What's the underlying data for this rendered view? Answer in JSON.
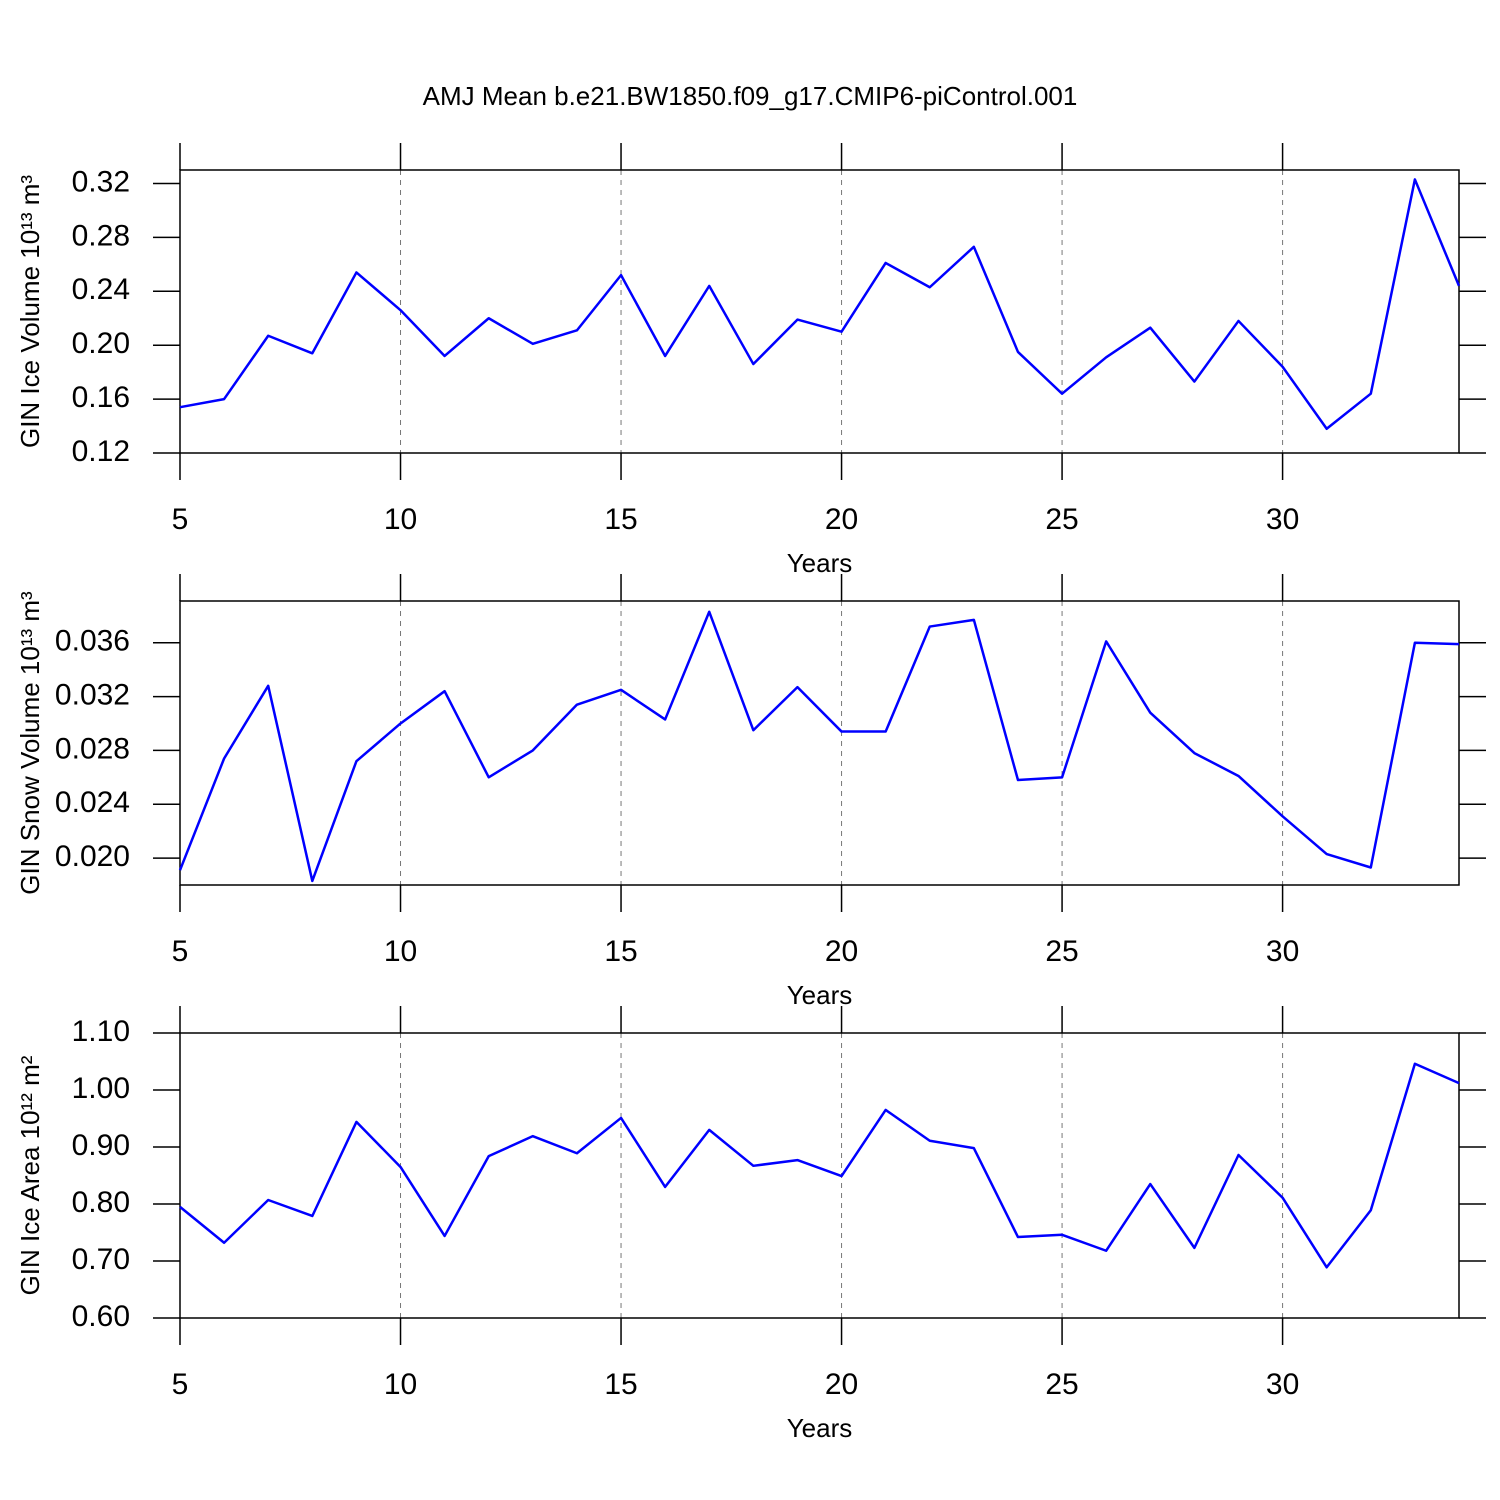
{
  "chart_data": [
    {
      "type": "line",
      "title": "AMJ Mean b.e21.BW1850.f09_g17.CMIP6-piControl.001",
      "ylabel": "GIN Ice Volume 10¹³ m³",
      "xlabel": "Years",
      "color": "#0000ff",
      "x": [
        5,
        6,
        7,
        8,
        9,
        10,
        11,
        12,
        13,
        14,
        15,
        16,
        17,
        18,
        19,
        20,
        21,
        22,
        23,
        24,
        25,
        26,
        27,
        28,
        29,
        30,
        31,
        32,
        33,
        34
      ],
      "values": [
        0.154,
        0.16,
        0.207,
        0.194,
        0.254,
        0.226,
        0.192,
        0.22,
        0.201,
        0.211,
        0.252,
        0.192,
        0.244,
        0.186,
        0.219,
        0.21,
        0.261,
        0.243,
        0.273,
        0.195,
        0.164,
        0.191,
        0.213,
        0.173,
        0.218,
        0.184,
        0.138,
        0.164,
        0.323,
        0.244
      ],
      "xlim": [
        5,
        34
      ],
      "xticks": [
        5,
        10,
        15,
        20,
        25,
        30
      ],
      "ylim": [
        0.12,
        0.33
      ],
      "yticks": [
        0.12,
        0.16,
        {
          "value": 0.2,
          "label": "0.20"
        },
        0.24,
        0.28,
        0.32
      ],
      "xgrid": true
    },
    {
      "type": "line",
      "ylabel": "GIN Snow Volume 10¹³ m³",
      "xlabel": "Years",
      "color": "#0000ff",
      "x": [
        5,
        6,
        7,
        8,
        9,
        10,
        11,
        12,
        13,
        14,
        15,
        16,
        17,
        18,
        19,
        20,
        21,
        22,
        23,
        24,
        25,
        26,
        27,
        28,
        29,
        30,
        31,
        32,
        33,
        34
      ],
      "values": [
        0.0191,
        0.0274,
        0.0328,
        0.0183,
        0.0272,
        0.03,
        0.0324,
        0.026,
        0.028,
        0.0314,
        0.0325,
        0.0303,
        0.0383,
        0.0295,
        0.0327,
        0.0294,
        0.0294,
        0.0372,
        0.0377,
        0.0258,
        0.026,
        0.0361,
        0.0308,
        0.0278,
        0.0261,
        0.0231,
        0.0203,
        0.0193,
        0.036,
        0.0359
      ],
      "xlim": [
        5,
        34
      ],
      "xticks": [
        5,
        10,
        15,
        20,
        25,
        30
      ],
      "ylim": [
        0.018,
        0.0391
      ],
      "yticks": [
        {
          "value": 0.02,
          "label": "0.020"
        },
        0.024,
        0.028,
        0.032,
        0.036
      ],
      "xgrid": true
    },
    {
      "type": "line",
      "ylabel": "GIN Ice Area 10¹² m²",
      "xlabel": "Years",
      "color": "#0000ff",
      "x": [
        5,
        6,
        7,
        8,
        9,
        10,
        11,
        12,
        13,
        14,
        15,
        16,
        17,
        18,
        19,
        20,
        21,
        22,
        23,
        24,
        25,
        26,
        27,
        28,
        29,
        30,
        31,
        32,
        33,
        34
      ],
      "values": [
        0.795,
        0.732,
        0.807,
        0.779,
        0.944,
        0.865,
        0.744,
        0.884,
        0.919,
        0.889,
        0.951,
        0.83,
        0.93,
        0.867,
        0.877,
        0.849,
        0.965,
        0.911,
        0.898,
        0.742,
        0.746,
        0.718,
        0.835,
        0.723,
        0.886,
        0.811,
        0.689,
        0.789,
        1.046,
        1.012
      ],
      "xlim": [
        5,
        34
      ],
      "xticks": [
        5,
        10,
        15,
        20,
        25,
        30
      ],
      "ylim": [
        0.6,
        1.1
      ],
      "yticks": [
        {
          "value": 0.6,
          "label": "0.60"
        },
        {
          "value": 0.7,
          "label": "0.70"
        },
        {
          "value": 0.8,
          "label": "0.80"
        },
        {
          "value": 0.9,
          "label": "0.90"
        },
        {
          "value": 1.0,
          "label": "1.00"
        },
        {
          "value": 1.1,
          "label": "1.10"
        }
      ],
      "xgrid": true
    }
  ]
}
